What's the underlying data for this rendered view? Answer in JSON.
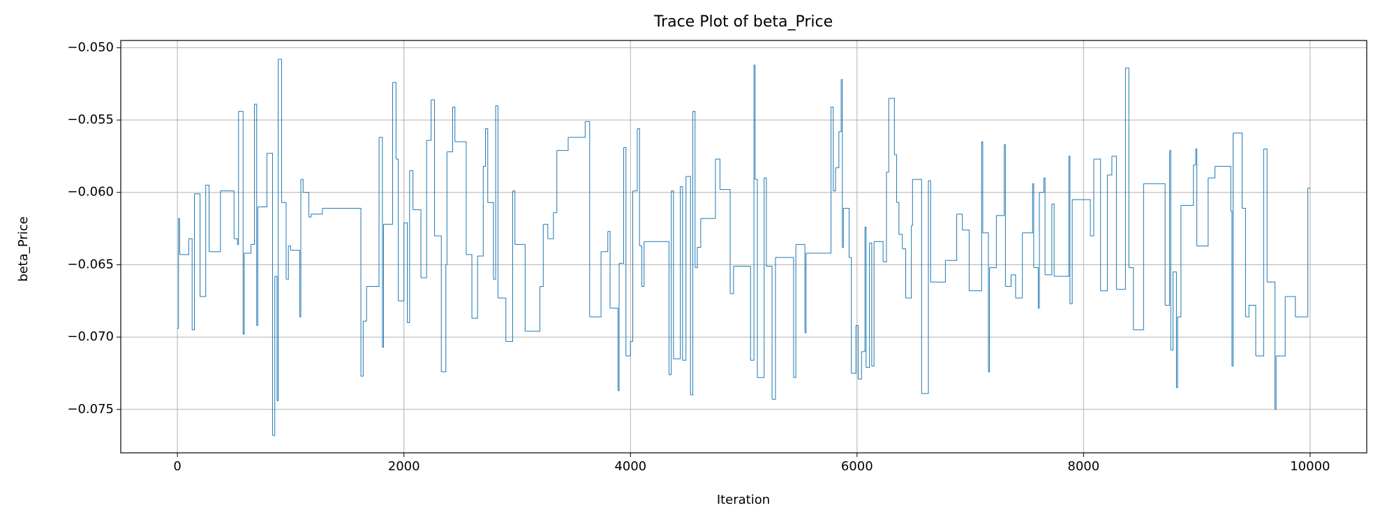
{
  "chart_data": {
    "type": "line",
    "drawstyle": "steps-post",
    "title": "Trace Plot of beta_Price",
    "xlabel": "Iteration",
    "ylabel": "beta_Price",
    "grid": true,
    "color": "#1f77b4",
    "xlim": [
      -500,
      10500
    ],
    "xticks": [
      0,
      2000,
      4000,
      6000,
      8000,
      10000
    ],
    "ylim": [
      -0.078,
      -0.0495
    ],
    "yticks": [
      {
        "value": -0.075,
        "label": "−0.075"
      },
      {
        "value": -0.07,
        "label": "−0.070"
      },
      {
        "value": -0.065,
        "label": "−0.065"
      },
      {
        "value": -0.06,
        "label": "−0.060"
      },
      {
        "value": -0.055,
        "label": "−0.055"
      },
      {
        "value": -0.05,
        "label": "−0.050"
      }
    ],
    "x": [
      0,
      10,
      20,
      100,
      130,
      150,
      200,
      250,
      280,
      380,
      500,
      530,
      540,
      580,
      590,
      650,
      680,
      700,
      710,
      790,
      840,
      860,
      880,
      890,
      920,
      960,
      980,
      1000,
      1080,
      1090,
      1110,
      1160,
      1180,
      1280,
      1620,
      1640,
      1670,
      1780,
      1810,
      1820,
      1900,
      1930,
      1950,
      2000,
      2030,
      2050,
      2080,
      2150,
      2200,
      2240,
      2270,
      2330,
      2370,
      2380,
      2430,
      2450,
      2550,
      2600,
      2650,
      2700,
      2720,
      2740,
      2790,
      2810,
      2830,
      2900,
      2960,
      2980,
      3070,
      3200,
      3230,
      3270,
      3320,
      3350,
      3450,
      3600,
      3640,
      3740,
      3800,
      3820,
      3890,
      3900,
      3940,
      3960,
      4000,
      4020,
      4060,
      4080,
      4100,
      4120,
      4340,
      4360,
      4380,
      4440,
      4460,
      4490,
      4530,
      4550,
      4570,
      4590,
      4620,
      4750,
      4790,
      4880,
      4910,
      5060,
      5090,
      5100,
      5120,
      5180,
      5200,
      5250,
      5280,
      5440,
      5460,
      5540,
      5550,
      5770,
      5790,
      5810,
      5840,
      5860,
      5870,
      5880,
      5930,
      5950,
      5990,
      6010,
      6040,
      6070,
      6080,
      6110,
      6130,
      6150,
      6230,
      6260,
      6280,
      6330,
      6350,
      6370,
      6400,
      6430,
      6480,
      6490,
      6570,
      6630,
      6650,
      6780,
      6880,
      6930,
      6990,
      7100,
      7110,
      7160,
      7170,
      7230,
      7300,
      7310,
      7360,
      7400,
      7460,
      7550,
      7560,
      7600,
      7610,
      7650,
      7660,
      7720,
      7740,
      7870,
      7880,
      7900,
      8060,
      8090,
      8150,
      8210,
      8250,
      8290,
      8370,
      8400,
      8440,
      8530,
      8720,
      8760,
      8770,
      8790,
      8820,
      8830,
      8860,
      8970,
      8990,
      9000,
      9100,
      9160,
      9300,
      9310,
      9320,
      9400,
      9430,
      9460,
      9520,
      9590,
      9620,
      9690,
      9700,
      9780,
      9870,
      9980,
      9999
    ],
    "values": [
      -0.0694,
      -0.0618,
      -0.0643,
      -0.0632,
      -0.0695,
      -0.0601,
      -0.0672,
      -0.0595,
      -0.0641,
      -0.0599,
      -0.0632,
      -0.0636,
      -0.0544,
      -0.0698,
      -0.0642,
      -0.0636,
      -0.0539,
      -0.0692,
      -0.061,
      -0.0573,
      -0.0768,
      -0.0658,
      -0.0744,
      -0.0508,
      -0.0607,
      -0.066,
      -0.0637,
      -0.064,
      -0.0686,
      -0.0591,
      -0.06,
      -0.0617,
      -0.0615,
      -0.0611,
      -0.0727,
      -0.0689,
      -0.0665,
      -0.0562,
      -0.0707,
      -0.0622,
      -0.0524,
      -0.0577,
      -0.0675,
      -0.0621,
      -0.069,
      -0.0585,
      -0.0612,
      -0.0659,
      -0.0564,
      -0.0536,
      -0.063,
      -0.0724,
      -0.065,
      -0.0572,
      -0.0541,
      -0.0565,
      -0.0643,
      -0.0687,
      -0.0644,
      -0.0582,
      -0.0556,
      -0.0607,
      -0.066,
      -0.054,
      -0.0673,
      -0.0703,
      -0.0599,
      -0.0636,
      -0.0696,
      -0.0665,
      -0.0622,
      -0.0632,
      -0.0614,
      -0.0571,
      -0.0562,
      -0.0551,
      -0.0686,
      -0.0641,
      -0.0627,
      -0.068,
      -0.0737,
      -0.0649,
      -0.0569,
      -0.0713,
      -0.0703,
      -0.0599,
      -0.0556,
      -0.0637,
      -0.0665,
      -0.0634,
      -0.0726,
      -0.0599,
      -0.0715,
      -0.0596,
      -0.0716,
      -0.0589,
      -0.074,
      -0.0544,
      -0.0652,
      -0.0638,
      -0.0618,
      -0.0577,
      -0.0598,
      -0.067,
      -0.0651,
      -0.0716,
      -0.0512,
      -0.0591,
      -0.0728,
      -0.059,
      -0.0651,
      -0.0743,
      -0.0645,
      -0.0728,
      -0.0636,
      -0.0697,
      -0.0642,
      -0.0541,
      -0.0599,
      -0.0583,
      -0.0558,
      -0.0522,
      -0.0638,
      -0.0611,
      -0.0645,
      -0.0725,
      -0.0692,
      -0.0729,
      -0.071,
      -0.0624,
      -0.0721,
      -0.0635,
      -0.072,
      -0.0634,
      -0.0648,
      -0.0586,
      -0.0535,
      -0.0574,
      -0.0607,
      -0.0629,
      -0.0639,
      -0.0673,
      -0.0623,
      -0.0591,
      -0.0739,
      -0.0592,
      -0.0662,
      -0.0647,
      -0.0615,
      -0.0626,
      -0.0668,
      -0.0565,
      -0.0628,
      -0.0724,
      -0.0652,
      -0.0616,
      -0.0567,
      -0.0665,
      -0.0657,
      -0.0673,
      -0.0628,
      -0.0594,
      -0.0652,
      -0.068,
      -0.06,
      -0.059,
      -0.0657,
      -0.0608,
      -0.0658,
      -0.0575,
      -0.0677,
      -0.0605,
      -0.063,
      -0.0577,
      -0.0668,
      -0.0588,
      -0.0575,
      -0.0667,
      -0.0514,
      -0.0652,
      -0.0695,
      -0.0594,
      -0.0678,
      -0.0571,
      -0.0709,
      -0.0655,
      -0.0735,
      -0.0686,
      -0.0609,
      -0.0581,
      -0.057,
      -0.0637,
      -0.059,
      -0.0582,
      -0.0613,
      -0.072,
      -0.0559,
      -0.0611,
      -0.0686,
      -0.0678,
      -0.0713,
      -0.057,
      -0.0662,
      -0.075,
      -0.0713,
      -0.0672,
      -0.0686,
      -0.0597,
      -0.0597
    ]
  }
}
